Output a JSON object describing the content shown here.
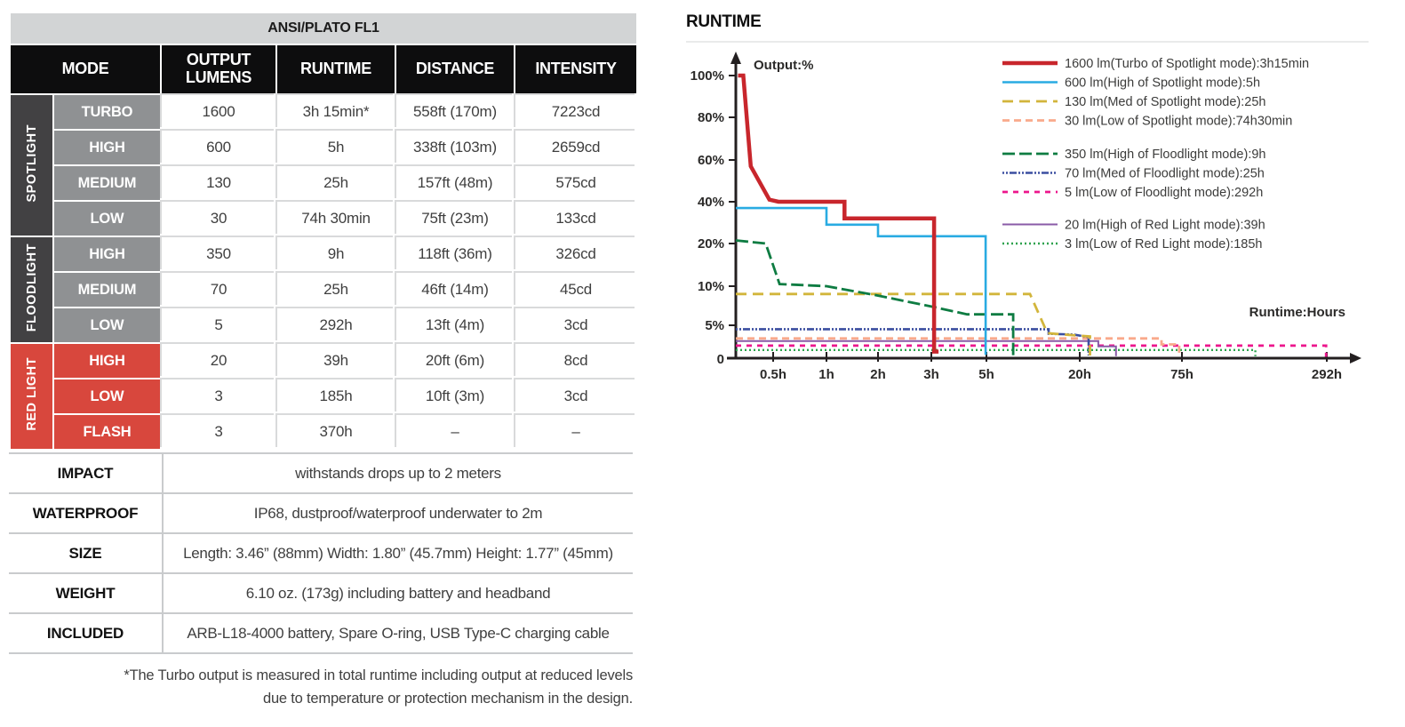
{
  "table": {
    "caption": "ANSI/PLATO FL1",
    "columns": [
      "MODE",
      "OUTPUT\nLUMENS",
      "RUNTIME",
      "DISTANCE",
      "INTENSITY"
    ],
    "groups": [
      {
        "name": "SPOTLIGHT",
        "color": "#424143",
        "rows": [
          {
            "mode": "TURBO",
            "lumens": "1600",
            "runtime": "3h 15min*",
            "distance": "558ft (170m)",
            "intensity": "7223cd"
          },
          {
            "mode": "HIGH",
            "lumens": "600",
            "runtime": "5h",
            "distance": "338ft (103m)",
            "intensity": "2659cd"
          },
          {
            "mode": "MEDIUM",
            "lumens": "130",
            "runtime": "25h",
            "distance": "157ft (48m)",
            "intensity": "575cd"
          },
          {
            "mode": "LOW",
            "lumens": "30",
            "runtime": "74h 30min",
            "distance": "75ft (23m)",
            "intensity": "133cd"
          }
        ]
      },
      {
        "name": "FLOODLIGHT",
        "color": "#424143",
        "rows": [
          {
            "mode": "HIGH",
            "lumens": "350",
            "runtime": "9h",
            "distance": "118ft (36m)",
            "intensity": "326cd"
          },
          {
            "mode": "MEDIUM",
            "lumens": "70",
            "runtime": "25h",
            "distance": "46ft (14m)",
            "intensity": "45cd"
          },
          {
            "mode": "LOW",
            "lumens": "5",
            "runtime": "292h",
            "distance": "13ft (4m)",
            "intensity": "3cd"
          }
        ]
      },
      {
        "name": "RED LIGHT",
        "color": "#d8473d",
        "rows": [
          {
            "mode": "HIGH",
            "lumens": "20",
            "runtime": "39h",
            "distance": "20ft (6m)",
            "intensity": "8cd"
          },
          {
            "mode": "LOW",
            "lumens": "3",
            "runtime": "185h",
            "distance": "10ft (3m)",
            "intensity": "3cd"
          },
          {
            "mode": "FLASH",
            "lumens": "3",
            "runtime": "370h",
            "distance": "–",
            "intensity": "–"
          }
        ]
      }
    ],
    "specs": [
      {
        "label": "IMPACT",
        "value": "withstands drops up to 2 meters"
      },
      {
        "label": "WATERPROOF",
        "value": "IP68, dustproof/waterproof underwater to 2m"
      },
      {
        "label": "SIZE",
        "value": "Length: 3.46” (88mm) Width: 1.80” (45.7mm) Height: 1.77” (45mm)"
      },
      {
        "label": "WEIGHT",
        "value": "6.10 oz. (173g) including battery and headband"
      },
      {
        "label": "INCLUDED",
        "value": "ARB-L18-4000 battery, Spare O-ring, USB Type-C charging cable"
      }
    ],
    "footnote_line1": "*The Turbo output is measured in total runtime including output at reduced levels",
    "footnote_line2": "due to temperature or protection mechanism in the design."
  },
  "chart": {
    "title": "RUNTIME",
    "ylabel": "Output:%",
    "xlabel": "Runtime:Hours"
  },
  "chart_data": {
    "type": "line",
    "title": "RUNTIME",
    "xlabel": "Runtime:Hours",
    "ylabel": "Output:%",
    "x_unit": "hours",
    "y_unit": "percent output",
    "grid": false,
    "legend_position": "top-right",
    "x_scale_note": "non-linear axis, ticks equally emphasized at 0.5,1,2,3,5,20,75,292 hours",
    "y_scale_note": "non-linear axis, ticks at 0,5,10,20,40,60,80,100 percent",
    "xticks": [
      {
        "v": 0.5,
        "label": "0.5h"
      },
      {
        "v": 1,
        "label": "1h"
      },
      {
        "v": 2,
        "label": "2h"
      },
      {
        "v": 3,
        "label": "3h"
      },
      {
        "v": 5,
        "label": "5h"
      },
      {
        "v": 20,
        "label": "20h"
      },
      {
        "v": 75,
        "label": "75h"
      },
      {
        "v": 292,
        "label": "292h"
      }
    ],
    "yticks": [
      {
        "v": 100,
        "label": "100%"
      },
      {
        "v": 80,
        "label": "80%"
      },
      {
        "v": 60,
        "label": "60%"
      },
      {
        "v": 40,
        "label": "40%"
      },
      {
        "v": 20,
        "label": "20%"
      },
      {
        "v": 10,
        "label": "10%"
      },
      {
        "v": 5,
        "label": "5%"
      },
      {
        "v": 0,
        "label": "0"
      }
    ],
    "origin_label": "0",
    "series": [
      {
        "id": "turbo-1600",
        "label": "1600 lm(Turbo of Spotlight mode):3h15min",
        "color": "#c8262c",
        "width": 4.5,
        "dash": "",
        "points": [
          [
            0.03,
            100
          ],
          [
            0.1,
            100
          ],
          [
            0.2,
            57
          ],
          [
            0.45,
            41
          ],
          [
            0.55,
            40
          ],
          [
            1.35,
            40
          ],
          [
            1.35,
            32
          ],
          [
            3.1,
            32
          ],
          [
            3.1,
            1
          ],
          [
            3.26,
            1
          ]
        ]
      },
      {
        "id": "high-600",
        "label": "600 lm(High of Spotlight mode):5h",
        "color": "#29abe2",
        "width": 2.6,
        "dash": "",
        "points": [
          [
            0,
            37
          ],
          [
            1,
            37
          ],
          [
            1,
            29
          ],
          [
            2,
            29
          ],
          [
            2,
            23.5
          ],
          [
            4.97,
            23.5
          ],
          [
            4.97,
            0.5
          ]
        ]
      },
      {
        "id": "med-130",
        "label": "130 lm(Med of Spotlight mode):25h",
        "color": "#d2b53b",
        "width": 2.8,
        "dash": "12,7",
        "points": [
          [
            0,
            9
          ],
          [
            12,
            9
          ],
          [
            14.8,
            3.8
          ],
          [
            25.5,
            3.3
          ],
          [
            25.5,
            0.4
          ]
        ]
      },
      {
        "id": "low-30",
        "label": "30 lm(Low of Spotlight mode):74h30min",
        "color": "#f9a98b",
        "width": 2.8,
        "dash": "8,5",
        "points": [
          [
            0,
            3
          ],
          [
            64,
            3
          ],
          [
            64,
            2.1
          ],
          [
            73.5,
            2.1
          ],
          [
            73.5,
            0.3
          ]
        ]
      },
      {
        "id": "flood-high-350",
        "label": "350 lm(High of Floodlight mode):9h",
        "color": "#0e7c42",
        "width": 2.8,
        "dash": "14,5",
        "points": [
          [
            0,
            21.5
          ],
          [
            0.4,
            20
          ],
          [
            0.56,
            10.5
          ],
          [
            1,
            10
          ],
          [
            2,
            8.8
          ],
          [
            3,
            7.4
          ],
          [
            4.3,
            6.4
          ],
          [
            9.3,
            6.4
          ],
          [
            9.3,
            0.3
          ]
        ]
      },
      {
        "id": "flood-med-70",
        "label": "70 lm(Med of Floodlight mode):25h",
        "color": "#3b4fa0",
        "width": 2.6,
        "dash": "2,2,2,2,8,2",
        "points": [
          [
            0,
            4.4
          ],
          [
            15,
            4.4
          ],
          [
            15,
            3.7
          ],
          [
            19,
            3.6
          ],
          [
            24.8,
            3.2
          ],
          [
            24.8,
            0.4
          ]
        ]
      },
      {
        "id": "flood-low-5",
        "label": "5 lm(Low of Floodlight mode):292h",
        "color": "#ec168c",
        "width": 2.8,
        "dash": "6,6",
        "points": [
          [
            0,
            1.9
          ],
          [
            291,
            1.9
          ],
          [
            291,
            0.2
          ]
        ]
      },
      {
        "id": "red-high-20",
        "label": "20 lm(High of Red Light mode):39h",
        "color": "#8a5ba7",
        "width": 2,
        "dash": "",
        "points": [
          [
            0,
            2.6
          ],
          [
            30,
            2.6
          ],
          [
            30,
            1.8
          ],
          [
            39.5,
            1.8
          ],
          [
            39.5,
            0.3
          ]
        ]
      },
      {
        "id": "red-low-3",
        "label": "3 lm(Low of Red Light mode):185h",
        "color": "#2ea24e",
        "width": 2.4,
        "dash": "2,3",
        "points": [
          [
            0,
            1.25
          ],
          [
            185,
            1.25
          ],
          [
            185,
            0.3
          ]
        ]
      }
    ]
  }
}
